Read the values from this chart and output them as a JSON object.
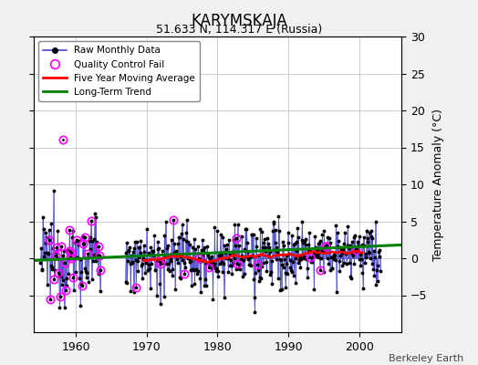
{
  "title": "KARYMSKAJA",
  "subtitle": "51.633 N, 114.317 E (Russia)",
  "ylabel": "Temperature Anomaly (°C)",
  "footer": "Berkeley Earth",
  "xlim": [
    1954,
    2006
  ],
  "ylim": [
    -10,
    30
  ],
  "yticks_right": [
    -5,
    0,
    5,
    10,
    15,
    20,
    25,
    30
  ],
  "xticks": [
    1960,
    1970,
    1980,
    1990,
    2000
  ],
  "bg_color": "#f0f0f0",
  "plot_bg_color": "#ffffff",
  "raw_line_color": "#4444cc",
  "raw_marker_color": "black",
  "qc_fail_color": "#ff00ff",
  "moving_avg_color": "red",
  "trend_color": "green",
  "seed": 12345
}
